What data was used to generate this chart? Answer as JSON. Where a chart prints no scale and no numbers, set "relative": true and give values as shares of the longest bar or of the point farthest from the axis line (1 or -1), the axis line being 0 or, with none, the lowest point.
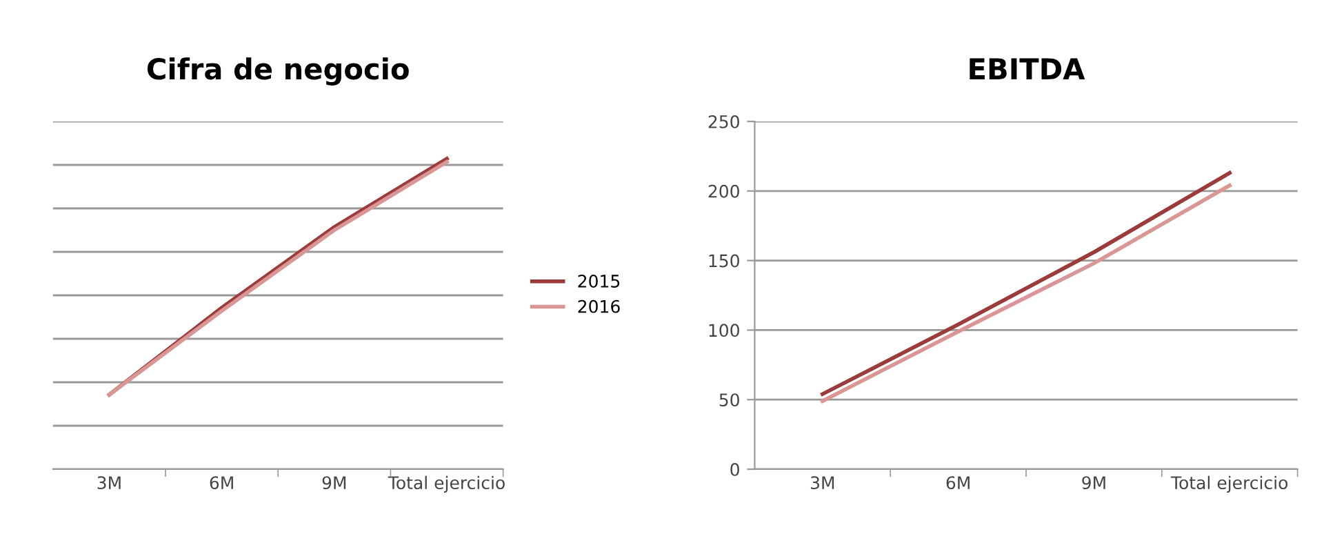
{
  "chart_data": [
    {
      "type": "line",
      "title": "Cifra de negocio",
      "relative": true,
      "categories": [
        "3M",
        "6M",
        "9M",
        "Total ejercicio"
      ],
      "grid": "y",
      "legend": "right",
      "series": [
        {
          "name": "2015",
          "color": "#9b3b3b",
          "values": [
            0.24,
            0.52,
            0.78,
            1.0
          ]
        },
        {
          "name": "2016",
          "color": "#d99694",
          "values": [
            0.24,
            0.51,
            0.77,
            0.99
          ]
        }
      ]
    },
    {
      "type": "line",
      "title": "EBITDA",
      "categories": [
        "3M",
        "6M",
        "9M",
        "Total ejercicio"
      ],
      "ylim": [
        0,
        250
      ],
      "yticks": [
        0,
        50,
        100,
        150,
        200,
        250
      ],
      "grid": "y",
      "series": [
        {
          "color": "#9b3b3b",
          "values": [
            54,
            104,
            156,
            213
          ]
        },
        {
          "color": "#d99694",
          "values": [
            49,
            99,
            148,
            204
          ]
        }
      ]
    }
  ]
}
